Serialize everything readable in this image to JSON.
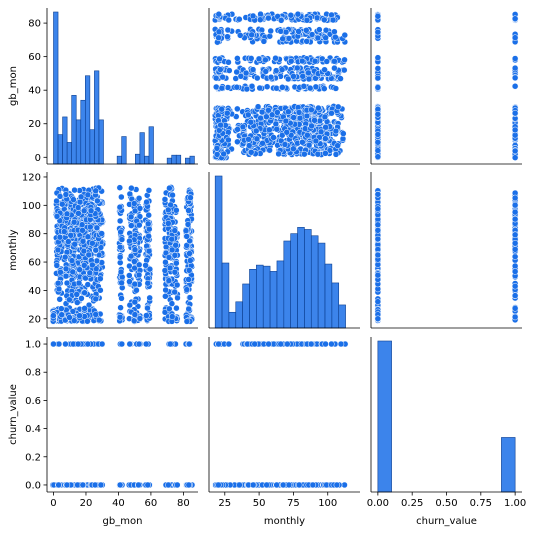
{
  "chart_data": {
    "type": "pairplot",
    "variables": [
      "gb_mon",
      "monthly",
      "churn_value"
    ],
    "marker_color": "#1a6fe8",
    "edge_color": "#ffffff",
    "axes": {
      "gb_mon": {
        "label": "gb_mon",
        "range": [
          -4,
          89
        ],
        "ticks": [
          0,
          20,
          40,
          60,
          80
        ],
        "tick_labels": [
          "0",
          "20",
          "40",
          "60",
          "80"
        ]
      },
      "monthly": {
        "label": "monthly",
        "range": [
          13.5,
          123.5
        ],
        "ticks": [
          20,
          40,
          60,
          80,
          100,
          120
        ],
        "tick_labels": [
          "20",
          "40",
          "60",
          "80",
          "100",
          "120"
        ],
        "x_ticks": [
          25,
          50,
          75,
          100
        ],
        "x_tick_labels": [
          "25",
          "50",
          "75",
          "100"
        ]
      },
      "churn_value": {
        "label": "churn_value",
        "range": [
          -0.05,
          1.05
        ],
        "ticks": [
          0,
          0.2,
          0.4,
          0.6,
          0.8,
          1.0
        ],
        "tick_labels": [
          "0.0",
          "0.2",
          "0.4",
          "0.6",
          "0.8",
          "1.0"
        ],
        "x_ticks": [
          0,
          0.25,
          0.5,
          0.75,
          1.0
        ],
        "x_tick_labels": [
          "0.00",
          "0.25",
          "0.50",
          "0.75",
          "1.00"
        ]
      }
    },
    "gb_mon_values": [
      0,
      2,
      3,
      4,
      5,
      7,
      8,
      9,
      10,
      11,
      12,
      13,
      14,
      15,
      16,
      17,
      18,
      19,
      20,
      21,
      22,
      23,
      24,
      25,
      26,
      27,
      28,
      29,
      30,
      41,
      42,
      47,
      48,
      50,
      51,
      52,
      53,
      57,
      58,
      59,
      69,
      71,
      72,
      73,
      75,
      76,
      82,
      83,
      84,
      85
    ],
    "histograms": {
      "gb_mon": {
        "bin_edges": [
          0,
          2.8,
          5.6,
          8.4,
          11.2,
          14,
          16.8,
          19.6,
          22.4,
          25.2,
          28,
          30.8,
          33.6,
          36.4,
          39.2,
          42,
          44.8,
          47.6,
          50.4,
          53.2,
          56,
          58.8,
          61.6,
          64.4,
          67.2,
          70,
          72.8,
          75.6,
          78.4,
          81.2,
          84,
          86.8
        ],
        "counts": [
          1550,
          300,
          480,
          220,
          700,
          450,
          650,
          900,
          350,
          950,
          450,
          0,
          0,
          0,
          80,
          280,
          0,
          0,
          100,
          320,
          80,
          380,
          0,
          0,
          0,
          60,
          90,
          90,
          0,
          60,
          80
        ]
      },
      "monthly": {
        "bin_edges": [
          18,
          23,
          28,
          33,
          38,
          43,
          48,
          53,
          58,
          63,
          68,
          73,
          78,
          83,
          88,
          93,
          98,
          103,
          108,
          113,
          118
        ],
        "counts": [
          1450,
          620,
          150,
          250,
          420,
          560,
          600,
          590,
          540,
          640,
          830,
          900,
          960,
          940,
          880,
          810,
          610,
          430,
          220,
          0
        ]
      },
      "churn_value": {
        "bin_edges": [
          0,
          0.1,
          0.2,
          0.3,
          0.4,
          0.5,
          0.6,
          0.7,
          0.8,
          0.9,
          1.0
        ],
        "counts": [
          5174,
          0,
          0,
          0,
          0,
          0,
          0,
          0,
          0,
          1869
        ]
      }
    }
  }
}
